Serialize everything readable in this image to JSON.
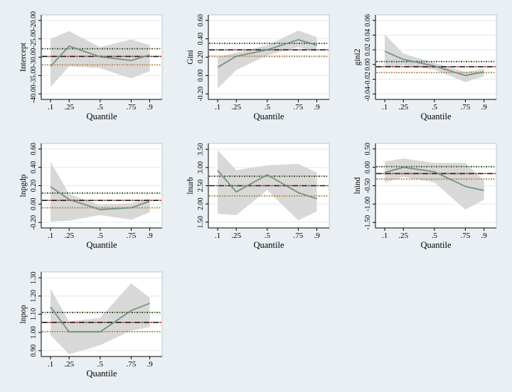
{
  "figure": {
    "xlabel": "Quantile",
    "x_tick_labels": [
      ".1",
      ".25",
      ".5",
      ".75",
      ".9"
    ],
    "x_tick_values": [
      0.1,
      0.25,
      0.5,
      0.75,
      0.9
    ],
    "x_range": [
      0.025,
      1.0
    ],
    "legend": "none",
    "grid": "horizontal-on",
    "colors": {
      "page_background": "#e9eff3",
      "plot_background": "#ffffff",
      "plot_border": "#bdc9d2",
      "gridline": "#dfe9ef",
      "axis": "#000000",
      "confidence_band": "#d8d8d8",
      "quantile_line": "#6e9081",
      "ols_dash_black": "#1a1a1a",
      "ols_dash_red": "#c0392b",
      "ols_ci_upper_dot_green": "#5f7d33",
      "ols_ci_upper_dot_dark": "#3f3f3f",
      "ols_ci_lower_dot_orange": "#e08a00",
      "ols_ci_lower_dot_gray": "#8c8c8c"
    }
  },
  "chart_data": [
    {
      "type": "line",
      "ylabel": "Intercept",
      "x": [
        0.1,
        0.25,
        0.5,
        0.75,
        0.9
      ],
      "quantile_estimates": [
        -32.5,
        -27.0,
        -29.9,
        -30.9,
        -29.4
      ],
      "band_upper": [
        -25.0,
        -22.9,
        -27.3,
        -25.2,
        -26.7
      ],
      "band_lower": [
        -38.1,
        -32.5,
        -33.0,
        -35.8,
        -33.8
      ],
      "ols_estimate": -29.8,
      "ols_ci": [
        -32.1,
        -27.7
      ],
      "yticks": [
        -40,
        -35,
        -30,
        -25,
        -20
      ],
      "ytick_labels": [
        "-40.00",
        "-35.00",
        "-30.00",
        "-25.00",
        "-20.00"
      ],
      "ylim": [
        -41.5,
        -18.5
      ]
    },
    {
      "type": "line",
      "ylabel": "Gini",
      "x": [
        0.1,
        0.25,
        0.5,
        0.75,
        0.9
      ],
      "quantile_estimates": [
        0.09,
        0.21,
        0.28,
        0.39,
        0.33
      ],
      "band_upper": [
        0.2,
        0.25,
        0.33,
        0.49,
        0.42
      ],
      "band_lower": [
        -0.14,
        0.06,
        0.22,
        0.31,
        0.26
      ],
      "ols_estimate": 0.28,
      "ols_ci": [
        0.21,
        0.35
      ],
      "yticks": [
        -0.2,
        0.0,
        0.2,
        0.4,
        0.6
      ],
      "ytick_labels": [
        "-0.20",
        "0.00",
        "0.20",
        "0.40",
        "0.60"
      ],
      "ylim": [
        -0.26,
        0.66
      ]
    },
    {
      "type": "line",
      "ylabel": "gini2",
      "x": [
        0.1,
        0.25,
        0.5,
        0.75,
        0.9
      ],
      "quantile_estimates": [
        0.018,
        0.007,
        -0.002,
        -0.015,
        -0.01
      ],
      "band_upper": [
        0.041,
        0.015,
        0.002,
        -0.01,
        -0.006
      ],
      "band_lower": [
        -0.004,
        -0.001,
        -0.007,
        -0.024,
        -0.016
      ],
      "ols_estimate": -0.003,
      "ols_ci": [
        -0.011,
        0.004
      ],
      "yticks": [
        -0.04,
        -0.02,
        0.0,
        0.02,
        0.04,
        0.06
      ],
      "ytick_labels": [
        "-0.04",
        "-0.02",
        "0.00",
        "0.02",
        "0.04",
        "0.06"
      ],
      "ylim": [
        -0.0475,
        0.0675
      ]
    },
    {
      "type": "line",
      "ylabel": "lnpgdp",
      "x": [
        0.1,
        0.25,
        0.5,
        0.75,
        0.9
      ],
      "quantile_estimates": [
        0.19,
        0.05,
        -0.06,
        -0.04,
        0.03
      ],
      "band_upper": [
        0.46,
        0.11,
        -0.01,
        0.01,
        0.06
      ],
      "band_lower": [
        -0.19,
        -0.18,
        -0.12,
        -0.17,
        -0.09
      ],
      "ols_estimate": 0.04,
      "ols_ci": [
        -0.04,
        0.12
      ],
      "yticks": [
        -0.2,
        0.0,
        0.2,
        0.4,
        0.6
      ],
      "ytick_labels": [
        "-0.20",
        "0.00",
        "0.20",
        "0.40",
        "0.60"
      ],
      "ylim": [
        -0.26,
        0.66
      ]
    },
    {
      "type": "line",
      "ylabel": "lnurb",
      "x": [
        0.1,
        0.25,
        0.5,
        0.75,
        0.9
      ],
      "quantile_estimates": [
        2.92,
        2.33,
        2.8,
        2.31,
        2.14
      ],
      "band_upper": [
        3.48,
        2.93,
        3.06,
        3.1,
        2.86
      ],
      "band_lower": [
        1.73,
        1.69,
        2.38,
        1.55,
        1.8
      ],
      "ols_estimate": 2.5,
      "ols_ci": [
        2.22,
        2.76
      ],
      "yticks": [
        1.5,
        2.0,
        2.5,
        3.0,
        3.5
      ],
      "ytick_labels": [
        "1.50",
        "2.00",
        "2.50",
        "3.00",
        "3.50"
      ],
      "ylim": [
        1.34,
        3.66
      ]
    },
    {
      "type": "line",
      "ylabel": "lnind",
      "x": [
        0.1,
        0.25,
        0.5,
        0.75,
        0.9
      ],
      "quantile_estimates": [
        -0.14,
        0.0,
        -0.12,
        -0.52,
        -0.63
      ],
      "band_upper": [
        0.16,
        0.24,
        0.12,
        0.12,
        -0.36
      ],
      "band_lower": [
        -0.41,
        -0.26,
        -0.41,
        -1.15,
        -0.88
      ],
      "ols_estimate": -0.17,
      "ols_ci": [
        -0.32,
        0.02
      ],
      "yticks": [
        -1.5,
        -1.0,
        -0.5,
        0.0,
        0.5
      ],
      "ytick_labels": [
        "-1.50",
        "-1.00",
        "-0.50",
        "0.00",
        "0.50"
      ],
      "ylim": [
        -1.65,
        0.65
      ]
    },
    {
      "type": "line",
      "ylabel": "lnpop",
      "x": [
        0.1,
        0.25,
        0.5,
        0.75,
        0.9
      ],
      "quantile_estimates": [
        1.14,
        1.003,
        1.003,
        1.12,
        1.16
      ],
      "band_upper": [
        1.24,
        1.06,
        1.08,
        1.27,
        1.19
      ],
      "band_lower": [
        0.985,
        0.88,
        0.93,
        1.01,
        1.03
      ],
      "ols_estimate": 1.055,
      "ols_ci": [
        1.005,
        1.11
      ],
      "yticks": [
        0.9,
        1.0,
        1.1,
        1.2,
        1.3
      ],
      "ytick_labels": [
        "0.90",
        "1.00",
        "1.10",
        "1.20",
        "1.30"
      ],
      "ylim": [
        0.868,
        1.332
      ]
    }
  ]
}
